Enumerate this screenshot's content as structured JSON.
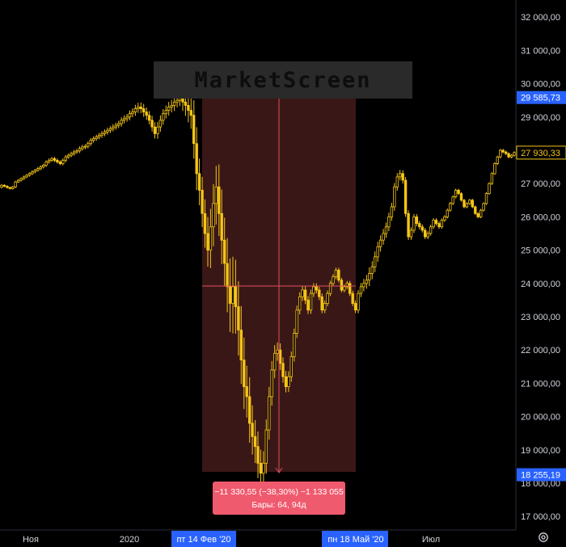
{
  "watermark": "MarketScreen",
  "info_box": {
    "line1": "−11 330,55 (−38,30%) −1 133 055",
    "line2": "Бары: 64, 94д"
  },
  "colors": {
    "background": "#000000",
    "candle": "#f5c518",
    "selection": "#3a1717",
    "crosshair": "#e0505c",
    "info_box": "#f05a6e",
    "price_label_blue": "#2962ff",
    "price_label_black": "#000000",
    "date_label_blue": "#2962ff"
  },
  "axis": {
    "x_labels": [
      "Ноя",
      "2020",
      "Июл"
    ],
    "highlighted_dates": [
      "пт 14 Фев '20",
      "пн 18 Май '20"
    ],
    "price_labels": [
      {
        "text": "29 585,73",
        "value": 29585.73,
        "style": "blue"
      },
      {
        "text": "27 930,33",
        "value": 27930.33,
        "style": "black"
      },
      {
        "text": "18 255,19",
        "value": 18255.19,
        "style": "blue"
      }
    ],
    "settings_icon": "gear-icon"
  },
  "chart_data": {
    "type": "candlestick",
    "title": "",
    "y_ticks": [
      "17 000,00",
      "18 000,00",
      "19 000,00",
      "20 000,00",
      "21 000,00",
      "22 000,00",
      "23 000,00",
      "24 000,00",
      "25 000,00",
      "26 000,00",
      "27 000,00",
      "28 000,00",
      "29 000,00",
      "30 000,00",
      "31 000,00",
      "32 000,00"
    ],
    "ylim": [
      16600,
      32300
    ],
    "x_tick_labels": [
      "Ноя",
      "2020",
      "Июл"
    ],
    "measurement": {
      "from_date": "пт 14 Фев '20",
      "to_date": "пн 18 Май '20",
      "from_price": 29585.73,
      "to_price": 18255.19,
      "change": "−11 330,55 (−38,30%) −1 133 055",
      "bars": "Бары: 64, 94д"
    },
    "last_price": 27930.33,
    "grid": false,
    "closes": [
      26950,
      26920,
      26880,
      26850,
      26900,
      27050,
      27100,
      27150,
      27200,
      27250,
      27300,
      27350,
      27400,
      27450,
      27500,
      27550,
      27650,
      27700,
      27750,
      27700,
      27650,
      27600,
      27700,
      27800,
      27850,
      27900,
      27950,
      27980,
      28050,
      28100,
      28120,
      28200,
      28300,
      28350,
      28400,
      28450,
      28500,
      28550,
      28600,
      28650,
      28700,
      28750,
      28800,
      28900,
      28950,
      29000,
      29100,
      29150,
      29250,
      29300,
      29250,
      29150,
      29050,
      28900,
      28700,
      28500,
      28700,
      28900,
      29100,
      29200,
      29300,
      29350,
      29450,
      29500,
      29580,
      29450,
      29350,
      29200,
      29050,
      28200,
      27300,
      26800,
      26100,
      25500,
      25000,
      25700,
      26400,
      26900,
      26100,
      25300,
      24600,
      23900,
      23400,
      23900,
      23300,
      22600,
      21700,
      20900,
      20600,
      19800,
      19400,
      19100,
      18600,
      18300,
      18600,
      19600,
      20600,
      21400,
      21900,
      22000,
      21600,
      21200,
      20900,
      21200,
      21800,
      22500,
      23200,
      23600,
      23800,
      23500,
      23200,
      23700,
      23900,
      23800,
      23600,
      23200,
      23400,
      23700,
      24000,
      24200,
      24400,
      24100,
      23800,
      23900,
      24000,
      23700,
      23400,
      23200,
      23700,
      23900,
      24000,
      24100,
      24300,
      24500,
      24800,
      25100,
      25300,
      25500,
      25700,
      26000,
      26300,
      26900,
      27200,
      27300,
      27100,
      26100,
      25400,
      25600,
      26000,
      25800,
      25700,
      25600,
      25400,
      25500,
      25700,
      25900,
      25800,
      25700,
      25900,
      26000,
      26200,
      26400,
      26600,
      26800,
      26700,
      26500,
      26300,
      26400,
      26500,
      26300,
      26100,
      26000,
      26200,
      26400,
      26700,
      27000,
      27300,
      27600,
      27800,
      28000,
      27950,
      27900,
      27800,
      27850,
      27930
    ],
    "volatility": [
      80,
      70,
      70,
      60,
      70,
      80,
      70,
      80,
      90,
      80,
      90,
      100,
      90,
      100,
      110,
      100,
      110,
      120,
      110,
      120,
      110,
      110,
      120,
      130,
      120,
      130,
      140,
      130,
      140,
      140,
      150,
      140,
      150,
      160,
      150,
      160,
      170,
      170,
      180,
      180,
      190,
      180,
      190,
      200,
      210,
      200,
      220,
      240,
      260,
      280,
      300,
      320,
      300,
      280,
      300,
      320,
      340,
      320,
      300,
      320,
      340,
      360,
      380,
      360,
      380,
      600,
      700,
      800,
      900,
      1000,
      1100,
      1000,
      900,
      950,
      1100,
      1200,
      1300,
      1400,
      1500,
      1600,
      1500,
      1700,
      1900,
      2000,
      1800,
      1700,
      1600,
      1500,
      1400,
      1300,
      1200,
      1100,
      1000,
      900,
      800,
      700,
      650,
      600,
      550,
      500,
      450,
      400,
      380,
      360,
      340,
      320,
      300,
      290,
      280,
      270,
      260,
      250,
      240,
      230,
      220,
      210,
      200,
      190,
      180,
      170,
      160,
      160,
      150,
      150,
      160,
      170,
      180,
      200,
      220,
      250,
      300,
      350,
      400,
      380,
      360,
      340,
      320,
      300,
      290,
      280,
      270,
      260,
      250,
      240,
      230,
      220,
      210,
      200,
      190,
      180,
      170,
      160,
      150,
      150,
      140,
      140,
      130,
      130,
      120,
      120,
      110,
      110,
      100,
      100,
      100,
      90,
      90,
      90
    ]
  }
}
